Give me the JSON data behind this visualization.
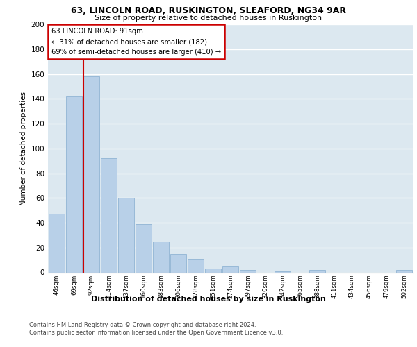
{
  "title1": "63, LINCOLN ROAD, RUSKINGTON, SLEAFORD, NG34 9AR",
  "title2": "Size of property relative to detached houses in Ruskington",
  "xlabel": "Distribution of detached houses by size in Ruskington",
  "ylabel": "Number of detached properties",
  "categories": [
    "46sqm",
    "69sqm",
    "92sqm",
    "114sqm",
    "137sqm",
    "160sqm",
    "183sqm",
    "206sqm",
    "228sqm",
    "251sqm",
    "274sqm",
    "297sqm",
    "320sqm",
    "342sqm",
    "365sqm",
    "388sqm",
    "411sqm",
    "434sqm",
    "456sqm",
    "479sqm",
    "502sqm"
  ],
  "values": [
    47,
    142,
    158,
    92,
    60,
    39,
    25,
    15,
    11,
    3,
    5,
    2,
    0,
    1,
    0,
    2,
    0,
    0,
    0,
    0,
    2
  ],
  "bar_color": "#b8d0e8",
  "bar_edge_color": "#90b4d4",
  "red_line_index": 2,
  "annotation_title": "63 LINCOLN ROAD: 91sqm",
  "annotation_line1": "← 31% of detached houses are smaller (182)",
  "annotation_line2": "69% of semi-detached houses are larger (410) →",
  "annotation_box_color": "#ffffff",
  "annotation_box_edge_color": "#cc0000",
  "red_line_color": "#cc0000",
  "footer1": "Contains HM Land Registry data © Crown copyright and database right 2024.",
  "footer2": "Contains public sector information licensed under the Open Government Licence v3.0.",
  "fig_background_color": "#ffffff",
  "plot_background_color": "#dce8f0",
  "ylim": [
    0,
    200
  ],
  "yticks": [
    0,
    20,
    40,
    60,
    80,
    100,
    120,
    140,
    160,
    180,
    200
  ]
}
